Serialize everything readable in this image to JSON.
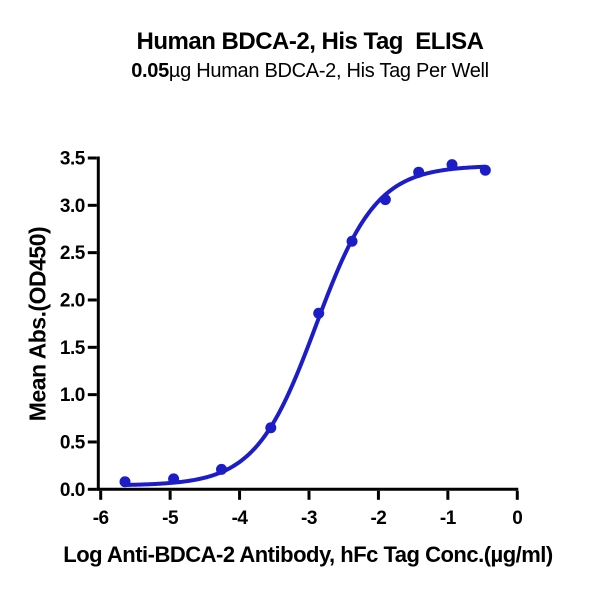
{
  "header": {
    "title": "Human BDCA-2, His Tag  ELISA",
    "subtitle_bold": "0.05",
    "subtitle_rest": "µg Human BDCA-2, His Tag Per Well"
  },
  "chart_data": {
    "type": "scatter",
    "title": "Human BDCA-2, His Tag  ELISA",
    "subtitle": "0.05µg Human BDCA-2, His Tag Per Well",
    "xlabel": "Log Anti-BDCA-2 Antibody, hFc Tag Conc.(µg/ml)",
    "ylabel": "Mean Abs.(OD450)",
    "xlim": [
      -6,
      0
    ],
    "ylim": [
      0,
      3.5
    ],
    "xticks": [
      -6,
      -5,
      -4,
      -3,
      -2,
      -1,
      0
    ],
    "xticklabels": [
      "-6",
      "-5",
      "-4",
      "-3",
      "-2",
      "-1",
      "0"
    ],
    "yticks": [
      0,
      0.5,
      1,
      1.5,
      2,
      2.5,
      3,
      3.5
    ],
    "yticklabels": [
      "0.0",
      "0.5",
      "1.0",
      "1.5",
      "2.0",
      "2.5",
      "3.0",
      "3.5"
    ],
    "grid": false,
    "legend": null,
    "line_color": "#1d1dc8",
    "marker_color": "#1d1dc8",
    "axis_color": "#000000",
    "points": [
      {
        "x": -5.65,
        "y": 0.08
      },
      {
        "x": -4.95,
        "y": 0.11
      },
      {
        "x": -4.26,
        "y": 0.21
      },
      {
        "x": -3.55,
        "y": 0.65
      },
      {
        "x": -2.86,
        "y": 1.86
      },
      {
        "x": -2.38,
        "y": 2.62
      },
      {
        "x": -1.9,
        "y": 3.06
      },
      {
        "x": -1.42,
        "y": 3.35
      },
      {
        "x": -0.94,
        "y": 3.43
      },
      {
        "x": -0.46,
        "y": 3.37
      }
    ],
    "fit": {
      "model": "4PL",
      "bottom": 0.04,
      "top": 3.42,
      "logEC50": -2.9,
      "hill": 1.0,
      "curve_range": [
        -5.65,
        -0.46
      ]
    }
  }
}
